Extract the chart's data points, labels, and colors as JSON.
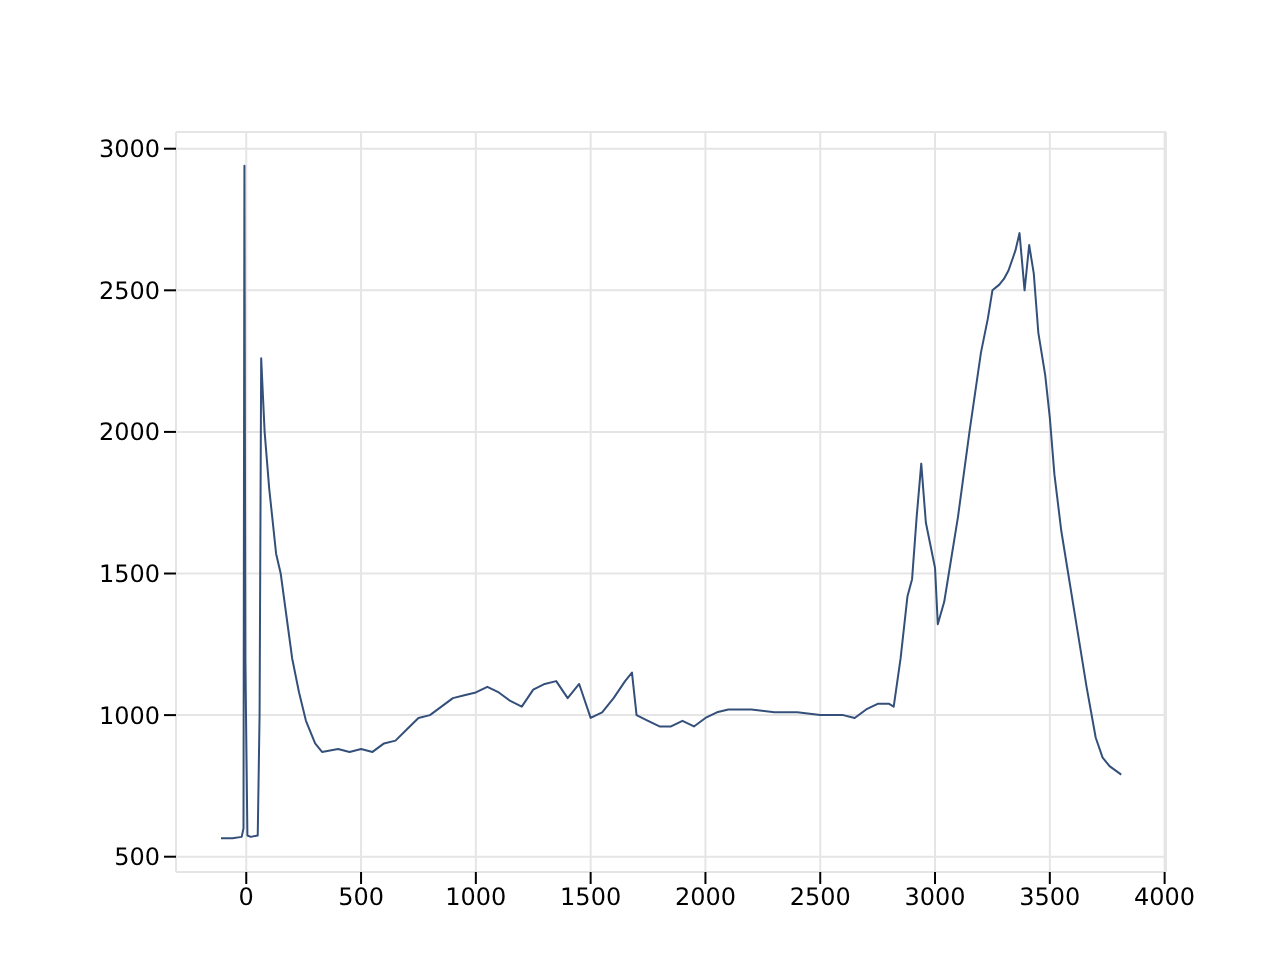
{
  "chart_data": {
    "type": "line",
    "x": [
      -110,
      -60,
      -20,
      -12,
      -8,
      -4,
      5,
      20,
      50,
      58,
      65,
      80,
      100,
      130,
      150,
      170,
      200,
      230,
      260,
      300,
      330,
      400,
      450,
      500,
      550,
      600,
      650,
      700,
      750,
      800,
      850,
      900,
      950,
      1000,
      1050,
      1100,
      1150,
      1200,
      1250,
      1300,
      1350,
      1400,
      1450,
      1500,
      1550,
      1600,
      1650,
      1680,
      1700,
      1750,
      1800,
      1850,
      1900,
      1950,
      2000,
      2050,
      2100,
      2200,
      2300,
      2400,
      2500,
      2600,
      2650,
      2700,
      2750,
      2800,
      2820,
      2850,
      2880,
      2900,
      2920,
      2940,
      2960,
      2980,
      3000,
      3012,
      3040,
      3060,
      3100,
      3150,
      3200,
      3230,
      3250,
      3280,
      3300,
      3320,
      3350,
      3368,
      3390,
      3410,
      3430,
      3450,
      3480,
      3500,
      3520,
      3550,
      3580,
      3620,
      3660,
      3700,
      3730,
      3760,
      3811
    ],
    "series": [
      {
        "color": "#34507a",
        "values": [
          565,
          565,
          570,
          600,
          2940,
          1200,
          575,
          570,
          575,
          1000,
          2260,
          2000,
          1800,
          1570,
          1500,
          1380,
          1200,
          1080,
          980,
          900,
          870,
          880,
          870,
          880,
          870,
          900,
          910,
          950,
          990,
          1000,
          1030,
          1060,
          1070,
          1080,
          1100,
          1080,
          1050,
          1030,
          1090,
          1110,
          1120,
          1060,
          1110,
          990,
          1010,
          1060,
          1120,
          1150,
          1000,
          980,
          960,
          960,
          980,
          960,
          990,
          1010,
          1020,
          1020,
          1010,
          1010,
          1000,
          1000,
          990,
          1020,
          1040,
          1040,
          1030,
          1200,
          1420,
          1480,
          1700,
          1888,
          1680,
          1600,
          1520,
          1321,
          1400,
          1500,
          1700,
          2000,
          2280,
          2400,
          2500,
          2520,
          2540,
          2570,
          2640,
          2702,
          2500,
          2660,
          2560,
          2350,
          2200,
          2050,
          1850,
          1650,
          1500,
          1300,
          1100,
          920,
          850,
          820,
          790
        ]
      }
    ],
    "xlim": [
      -306,
      4006
    ],
    "ylim": [
      446,
      3059
    ],
    "xticks": [
      0,
      500,
      1000,
      1500,
      2000,
      2500,
      3000,
      3500,
      4000
    ],
    "yticks": [
      500,
      1000,
      1500,
      2000,
      2500,
      3000
    ],
    "grid": true,
    "legend": false,
    "marker": "none",
    "line_style": "solid"
  }
}
